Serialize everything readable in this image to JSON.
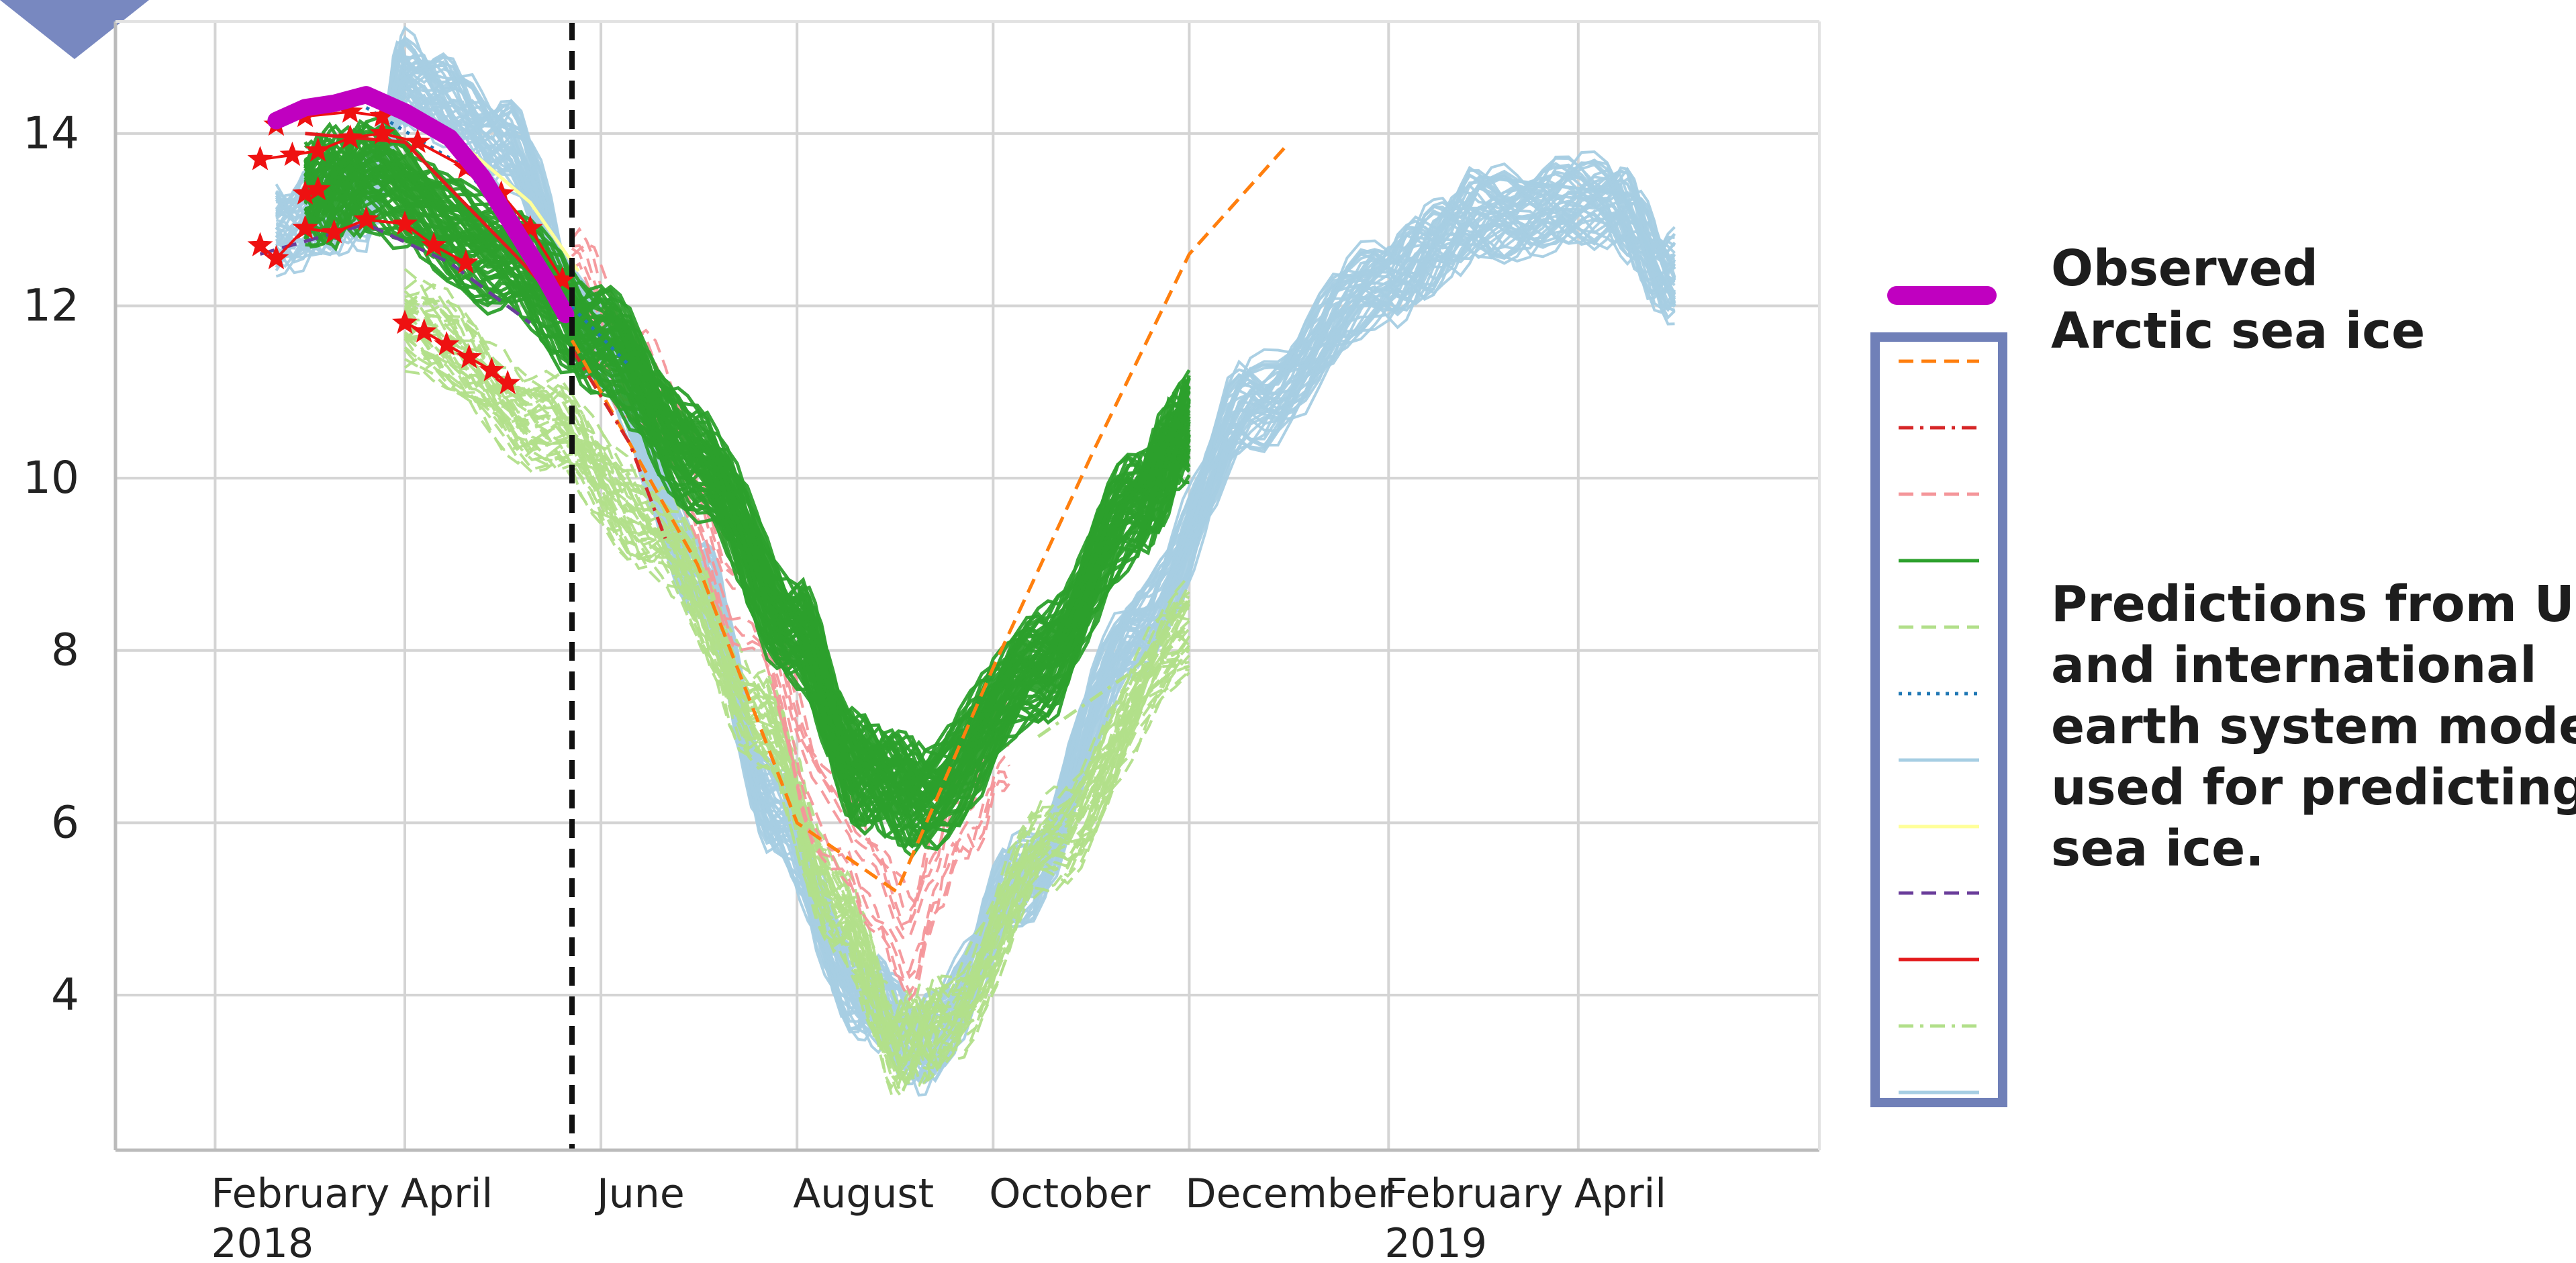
{
  "chart_data": {
    "type": "line",
    "title": "",
    "xlabel": "",
    "ylabel": "",
    "ylim": [
      2.2,
      15.3
    ],
    "xlim": [
      "2018-01-01",
      "2019-06-15"
    ],
    "grid": true,
    "y_ticks": [
      "4",
      "6",
      "8",
      "10",
      "12",
      "14"
    ],
    "x_ticks": [
      {
        "date": "2018-02-01",
        "label": "February",
        "sublabel": "2018"
      },
      {
        "date": "2018-04-01",
        "label": "April",
        "sublabel": ""
      },
      {
        "date": "2018-06-01",
        "label": "June",
        "sublabel": ""
      },
      {
        "date": "2018-08-01",
        "label": "August",
        "sublabel": ""
      },
      {
        "date": "2018-10-01",
        "label": "October",
        "sublabel": ""
      },
      {
        "date": "2018-12-01",
        "label": "December",
        "sublabel": ""
      },
      {
        "date": "2019-02-01",
        "label": "February",
        "sublabel": "2019"
      },
      {
        "date": "2019-04-01",
        "label": "April",
        "sublabel": ""
      }
    ],
    "vertical_marker": {
      "date": "2018-05-23",
      "style": "dashed",
      "color": "#111111"
    },
    "observed": {
      "name": "Observed Arctic sea ice",
      "color": "#c000c0",
      "points": [
        [
          "2018-02-20",
          14.15
        ],
        [
          "2018-03-01",
          14.3
        ],
        [
          "2018-03-10",
          14.35
        ],
        [
          "2018-03-20",
          14.45
        ],
        [
          "2018-04-01",
          14.25
        ],
        [
          "2018-04-15",
          13.95
        ],
        [
          "2018-04-25",
          13.5
        ],
        [
          "2018-05-05",
          12.9
        ],
        [
          "2018-05-15",
          12.3
        ],
        [
          "2018-05-21",
          11.9
        ]
      ]
    },
    "series": [
      {
        "color": "#ff7f0e",
        "dash": "dashed",
        "points": [
          [
            "2018-05-23",
            11.6
          ],
          [
            "2018-07-01",
            9.0
          ],
          [
            "2018-08-01",
            6.0
          ],
          [
            "2018-09-01",
            5.2
          ],
          [
            "2018-10-01",
            7.8
          ],
          [
            "2018-11-01",
            10.3
          ],
          [
            "2018-12-01",
            12.6
          ],
          [
            "2018-12-31",
            13.85
          ]
        ]
      },
      {
        "color": "#d62728",
        "dash": "dashdot",
        "points": [
          [
            "2018-05-23",
            11.5
          ],
          [
            "2018-06-10",
            10.4
          ],
          [
            "2018-06-21",
            9.3
          ]
        ]
      },
      {
        "color": "#f4969a",
        "dash": "dashed",
        "band": [
          12.2,
          11.0,
          8.6,
          5.8,
          4.6,
          6.0,
          6.9
        ],
        "band_x": [
          "2018-05-23",
          "2018-06-15",
          "2018-07-15",
          "2018-08-15",
          "2018-09-05",
          "2018-09-20",
          "2018-10-06"
        ],
        "spread": 1.2,
        "count": 9
      },
      {
        "color": "#2ca02c",
        "dash": "solid",
        "band": [
          13.3,
          13.5,
          12.6,
          11.6,
          10.2,
          8.2,
          6.6,
          6.3,
          7.8,
          9.7,
          10.6
        ],
        "band_x": [
          "2018-03-01",
          "2018-03-20",
          "2018-05-01",
          "2018-06-01",
          "2018-07-01",
          "2018-08-01",
          "2018-08-20",
          "2018-09-10",
          "2018-10-15",
          "2018-11-15",
          "2018-12-01"
        ],
        "spread": 1.05,
        "count": 60
      },
      {
        "color": "#b2df8a",
        "dash": "dashed",
        "band": [
          11.8,
          10.6,
          9.3,
          7.2,
          4.9,
          3.4,
          3.6,
          5.8,
          8.2
        ],
        "band_x": [
          "2018-04-01",
          "2018-05-15",
          "2018-06-20",
          "2018-07-20",
          "2018-08-15",
          "2018-09-01",
          "2018-09-15",
          "2018-10-20",
          "2018-12-01"
        ],
        "spread": 0.85,
        "count": 40
      },
      {
        "color": "#1f77b4",
        "dash": "dotted",
        "points": [
          [
            "2018-03-20",
            14.3
          ],
          [
            "2018-04-20",
            13.6
          ],
          [
            "2018-05-20",
            12.1
          ],
          [
            "2018-06-10",
            11.3
          ]
        ]
      },
      {
        "color": "#a6cee3",
        "dash": "solid",
        "band": [
          12.9,
          13.2,
          14.6,
          13.9,
          11.5,
          8.9,
          6.1,
          4.0,
          3.4,
          5.3,
          8.2,
          10.8,
          12.3,
          13.0,
          13.2,
          12.3
        ],
        "band_x": [
          "2018-02-20",
          "2018-03-20",
          "2018-04-01",
          "2018-05-01",
          "2018-06-01",
          "2018-07-01",
          "2018-07-25",
          "2018-08-20",
          "2018-09-10",
          "2018-10-10",
          "2018-11-15",
          "2018-12-20",
          "2019-02-01",
          "2019-03-01",
          "2019-04-10",
          "2019-05-01"
        ],
        "spread": 0.85,
        "count": 45
      },
      {
        "color": "#ffff99",
        "dash": "solid",
        "points": [
          [
            "2018-04-15",
            14.0
          ],
          [
            "2018-05-10",
            13.2
          ],
          [
            "2018-05-25",
            12.4
          ]
        ]
      },
      {
        "color": "#6a3d9a",
        "dash": "dashed",
        "points": [
          [
            "2018-02-15",
            12.6
          ],
          [
            "2018-03-20",
            12.95
          ],
          [
            "2018-04-15",
            12.5
          ],
          [
            "2018-05-10",
            11.8
          ]
        ]
      },
      {
        "color": "#e31a1c",
        "dash": "solid",
        "points": [
          [
            "2018-03-01",
            14.0
          ],
          [
            "2018-04-01",
            13.9
          ],
          [
            "2018-05-05",
            12.6
          ],
          [
            "2018-05-20",
            12.0
          ]
        ]
      },
      {
        "color": "#b2df8a",
        "dash": "dashdot",
        "points": [
          [
            "2018-10-15",
            7.0
          ],
          [
            "2018-11-15",
            7.8
          ],
          [
            "2018-12-01",
            8.6
          ]
        ]
      },
      {
        "color": "#a6cee3",
        "dash": "solid",
        "points": [
          [
            "2019-03-01",
            13.5
          ],
          [
            "2019-04-15",
            13.3
          ],
          [
            "2019-05-01",
            12.0
          ]
        ]
      }
    ],
    "star_groups": [
      {
        "color": "#ee1111",
        "points": [
          [
            "2018-02-15",
            12.7
          ],
          [
            "2018-02-20",
            12.55
          ],
          [
            "2018-03-01",
            12.9
          ],
          [
            "2018-03-10",
            12.85
          ],
          [
            "2018-03-20",
            13.0
          ],
          [
            "2018-04-01",
            12.95
          ],
          [
            "2018-04-10",
            12.7
          ],
          [
            "2018-04-20",
            12.5
          ]
        ]
      },
      {
        "color": "#ee1111",
        "points": [
          [
            "2018-02-15",
            13.7
          ],
          [
            "2018-02-25",
            13.75
          ],
          [
            "2018-03-05",
            13.8
          ],
          [
            "2018-03-15",
            13.95
          ],
          [
            "2018-03-25",
            14.0
          ],
          [
            "2018-04-05",
            13.9
          ],
          [
            "2018-04-20",
            13.6
          ],
          [
            "2018-05-01",
            13.3
          ],
          [
            "2018-05-10",
            12.9
          ],
          [
            "2018-05-20",
            12.3
          ]
        ]
      },
      {
        "color": "#ee1111",
        "points": [
          [
            "2018-02-20",
            14.1
          ],
          [
            "2018-03-01",
            14.2
          ],
          [
            "2018-03-15",
            14.25
          ],
          [
            "2018-03-25",
            14.2
          ]
        ]
      },
      {
        "color": "#ee1111",
        "points": [
          [
            "2018-03-01",
            13.3
          ],
          [
            "2018-03-05",
            13.35
          ]
        ]
      },
      {
        "color": "#ee1111",
        "points": [
          [
            "2018-04-01",
            11.8
          ],
          [
            "2018-04-07",
            11.7
          ],
          [
            "2018-04-14",
            11.55
          ],
          [
            "2018-04-21",
            11.4
          ],
          [
            "2018-04-28",
            11.25
          ],
          [
            "2018-05-03",
            11.1
          ]
        ]
      }
    ],
    "legend": {
      "observed_label_line1": "Observed",
      "observed_label_line2": "Arctic sea ice",
      "models_label_lines": [
        "Predictions from U.S.",
        "and international",
        "earth system models",
        "used for predicting",
        "sea ice."
      ],
      "box_color": "#7080b8",
      "placement": "right"
    }
  },
  "colors": {
    "grid": "#d4d4d4",
    "axis": "#bbbbbb",
    "corner_marker": "#7888c0"
  }
}
